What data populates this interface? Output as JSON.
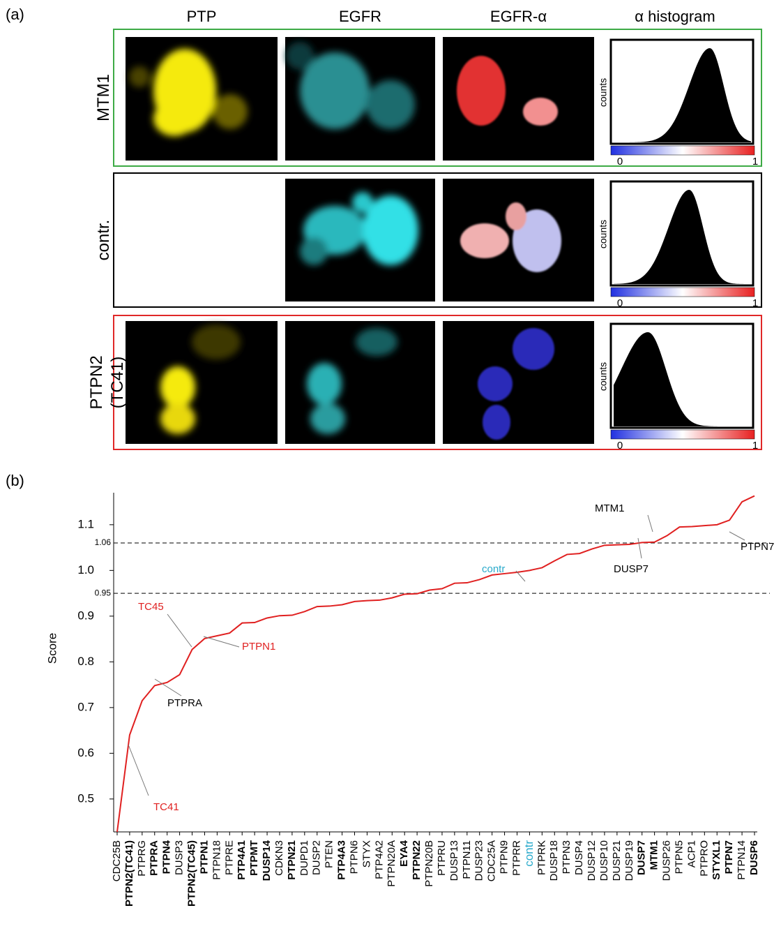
{
  "panel_a": {
    "label": "(a)",
    "columns": [
      "PTP",
      "EGFR",
      "EGFR-α",
      "α histogram"
    ],
    "rows": [
      [
        "MTM1"
      ],
      [
        "contr."
      ],
      [
        "PTPN2",
        "(TC41)"
      ]
    ],
    "row_frame_colors": [
      "#3daa45",
      "#000000",
      "#e02828"
    ],
    "histogram_ylabel": "counts",
    "colorbar_ticks": [
      0,
      1
    ]
  },
  "chart_data": {
    "type": "line",
    "panel_label": "(b)",
    "ylabel": "Score",
    "categories": [
      "CDC25B",
      "PTPN2(TC41)",
      "PTPRG",
      "PTPRA",
      "PTPN4",
      "DUSP3",
      "PTPN2(TC45)",
      "PTPN1",
      "PTPN18",
      "PTPRE",
      "PTP4A1",
      "PTPMT",
      "DUSP14",
      "CDKN3",
      "PTPN21",
      "DUPD1",
      "DUSP2",
      "PTEN",
      "PTP4A3",
      "PTPN6",
      "STYX",
      "PTP4A2",
      "PTPN20A",
      "EYA4",
      "PTPN22",
      "PTPN20B",
      "PTPRU",
      "DUSP13",
      "PTPN11",
      "DUSP23",
      "CDC25A",
      "PTPN9",
      "PTPRR",
      "contr",
      "PTPRK",
      "DUSP18",
      "PTPN3",
      "DUSP4",
      "DUSP12",
      "DUSP10",
      "DUSP21",
      "DUSP19",
      "DUSP7",
      "MTM1",
      "DUSP26",
      "PTPN5",
      "ACP1",
      "PTPRO",
      "STYXL1",
      "PTPN7",
      "PTPN14",
      "DUSP6"
    ],
    "bold": [
      false,
      true,
      false,
      true,
      true,
      false,
      true,
      true,
      false,
      false,
      true,
      true,
      true,
      false,
      true,
      false,
      false,
      false,
      true,
      false,
      false,
      false,
      false,
      true,
      true,
      false,
      false,
      false,
      false,
      false,
      false,
      false,
      false,
      false,
      false,
      false,
      false,
      false,
      false,
      false,
      false,
      false,
      true,
      true,
      false,
      false,
      false,
      false,
      true,
      true,
      false,
      true
    ],
    "highlight_category": "contr",
    "highlight_color": "#2aaacb",
    "series": [
      {
        "name": "Score",
        "color": "#e02020",
        "values": [
          0.428,
          0.64,
          0.715,
          0.748,
          0.755,
          0.772,
          0.827,
          0.851,
          0.857,
          0.863,
          0.885,
          0.886,
          0.896,
          0.901,
          0.902,
          0.91,
          0.921,
          0.922,
          0.925,
          0.932,
          0.934,
          0.935,
          0.94,
          0.948,
          0.949,
          0.957,
          0.96,
          0.972,
          0.973,
          0.98,
          0.99,
          0.993,
          0.996,
          1.0,
          1.006,
          1.021,
          1.035,
          1.037,
          1.047,
          1.055,
          1.056,
          1.057,
          1.061,
          1.062,
          1.076,
          1.095,
          1.096,
          1.098,
          1.1,
          1.11,
          1.15,
          1.163
        ]
      }
    ],
    "ylim": [
      0.428,
      1.17
    ],
    "yticks": [
      0.5,
      0.6,
      0.7,
      0.8,
      0.9,
      {
        "value": 1,
        "label": "1.0"
      },
      1.1
    ],
    "reference_lines": [
      0.95,
      1.06
    ],
    "annotations": [
      {
        "text": "TC45",
        "color": "#e02020"
      },
      {
        "text": "PTPN1",
        "color": "#e02020"
      },
      {
        "text": "PTPRA",
        "color": "#000000"
      },
      {
        "text": "TC41",
        "color": "#e02020"
      },
      {
        "text": "contr",
        "color": "#2aaacb"
      },
      {
        "text": "MTM1",
        "color": "#000000"
      },
      {
        "text": "DUSP7",
        "color": "#000000"
      },
      {
        "text": "PTPN7",
        "color": "#000000"
      }
    ]
  }
}
